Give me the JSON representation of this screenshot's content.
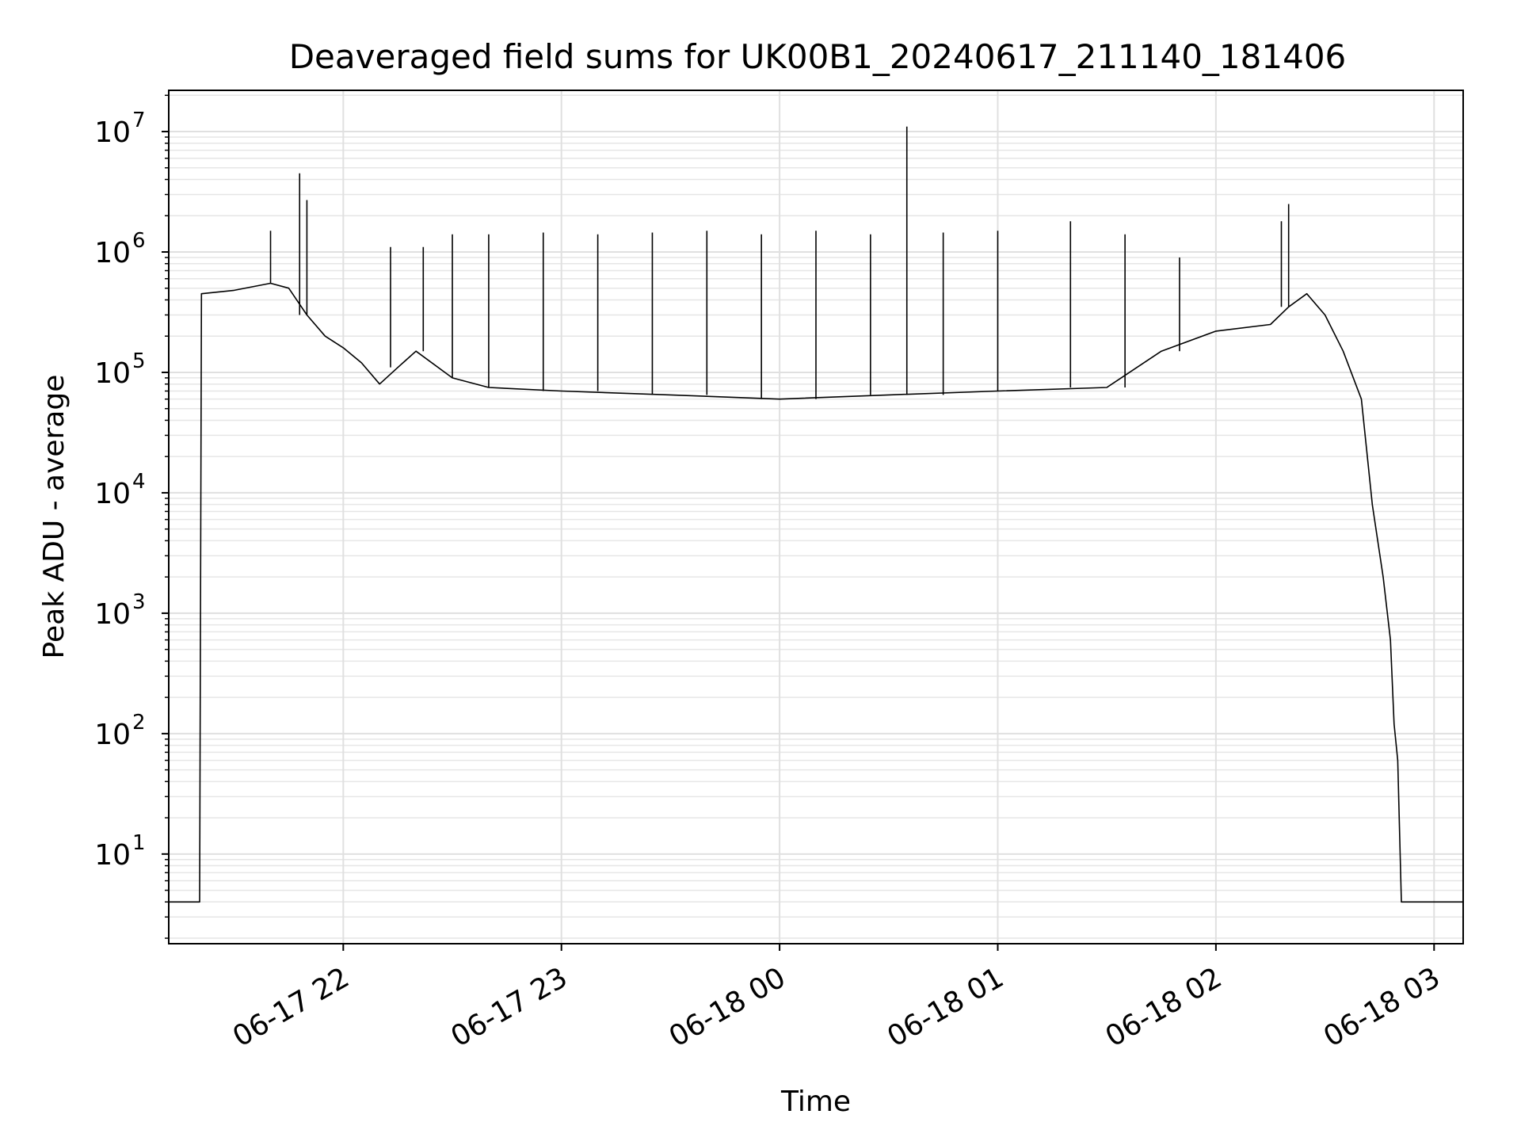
{
  "chart_data": {
    "type": "line",
    "title": "Deaveraged field sums for UK00B1_20240617_211140_181406",
    "xlabel": "Time",
    "ylabel": "Peak ADU - average",
    "yscale": "log",
    "ylim": [
      1.8,
      22000000
    ],
    "xlim": [
      "2024-06-17 21:12",
      "2024-06-18 03:08"
    ],
    "grid": true,
    "legend": "none",
    "line_color": "#000000",
    "x_ticks": [
      "06-17 22",
      "06-17 23",
      "06-18 00",
      "06-18 01",
      "06-18 02",
      "06-18 03"
    ],
    "y_ticks": [
      {
        "value": 10,
        "base": "10",
        "exp": "1"
      },
      {
        "value": 100,
        "base": "10",
        "exp": "2"
      },
      {
        "value": 1000,
        "base": "10",
        "exp": "3"
      },
      {
        "value": 10000,
        "base": "10",
        "exp": "4"
      },
      {
        "value": 100000,
        "base": "10",
        "exp": "5"
      },
      {
        "value": 1000000,
        "base": "10",
        "exp": "6"
      },
      {
        "value": 10000000,
        "base": "10",
        "exp": "7"
      }
    ],
    "series": [
      {
        "x": [
          "2024-06-17 21:12",
          "2024-06-17 21:20",
          "2024-06-17 21:20:30",
          "2024-06-17 21:21",
          "2024-06-17 21:30",
          "2024-06-17 21:40",
          "2024-06-17 21:45",
          "2024-06-17 21:50",
          "2024-06-17 21:55",
          "2024-06-17 22:00",
          "2024-06-17 22:05",
          "2024-06-17 22:10",
          "2024-06-17 22:15",
          "2024-06-17 22:20",
          "2024-06-17 22:30",
          "2024-06-17 22:40",
          "2024-06-17 23:00",
          "2024-06-17 23:30",
          "2024-06-18 00:00",
          "2024-06-18 00:30",
          "2024-06-18 01:00",
          "2024-06-18 01:30",
          "2024-06-18 01:45",
          "2024-06-18 02:00",
          "2024-06-18 02:15",
          "2024-06-18 02:20",
          "2024-06-18 02:25",
          "2024-06-18 02:30",
          "2024-06-18 02:35",
          "2024-06-18 02:40",
          "2024-06-18 02:43",
          "2024-06-18 02:46",
          "2024-06-18 02:48",
          "2024-06-18 02:49",
          "2024-06-18 02:50",
          "2024-06-18 02:51",
          "2024-06-18 03:08"
        ],
        "y": [
          4,
          4,
          4,
          450000,
          480000,
          550000,
          500000,
          300000,
          200000,
          160000,
          120000,
          80000,
          110000,
          150000,
          90000,
          75000,
          70000,
          65000,
          60000,
          65000,
          70000,
          75000,
          150000,
          220000,
          250000,
          350000,
          450000,
          300000,
          150000,
          60000,
          8000,
          2000,
          600,
          120,
          60,
          4,
          4
        ]
      }
    ],
    "spikes": [
      {
        "x": "2024-06-17 21:40",
        "y": 1500000
      },
      {
        "x": "2024-06-17 21:48",
        "y": 4500000
      },
      {
        "x": "2024-06-17 21:50",
        "y": 2700000
      },
      {
        "x": "2024-06-17 22:13",
        "y": 1100000
      },
      {
        "x": "2024-06-17 22:22",
        "y": 1100000
      },
      {
        "x": "2024-06-17 22:30",
        "y": 1400000
      },
      {
        "x": "2024-06-17 22:40",
        "y": 1400000
      },
      {
        "x": "2024-06-17 22:55",
        "y": 1450000
      },
      {
        "x": "2024-06-17 23:10",
        "y": 1400000
      },
      {
        "x": "2024-06-17 23:25",
        "y": 1450000
      },
      {
        "x": "2024-06-17 23:40",
        "y": 1500000
      },
      {
        "x": "2024-06-17 23:55",
        "y": 1400000
      },
      {
        "x": "2024-06-18 00:10",
        "y": 1500000
      },
      {
        "x": "2024-06-18 00:25",
        "y": 1400000
      },
      {
        "x": "2024-06-18 00:35",
        "y": 11000000
      },
      {
        "x": "2024-06-18 00:45",
        "y": 1450000
      },
      {
        "x": "2024-06-18 01:00",
        "y": 1500000
      },
      {
        "x": "2024-06-18 01:20",
        "y": 1800000
      },
      {
        "x": "2024-06-18 01:35",
        "y": 1400000
      },
      {
        "x": "2024-06-18 01:50",
        "y": 900000
      },
      {
        "x": "2024-06-18 02:18",
        "y": 1800000
      },
      {
        "x": "2024-06-18 02:20",
        "y": 2500000
      }
    ]
  }
}
